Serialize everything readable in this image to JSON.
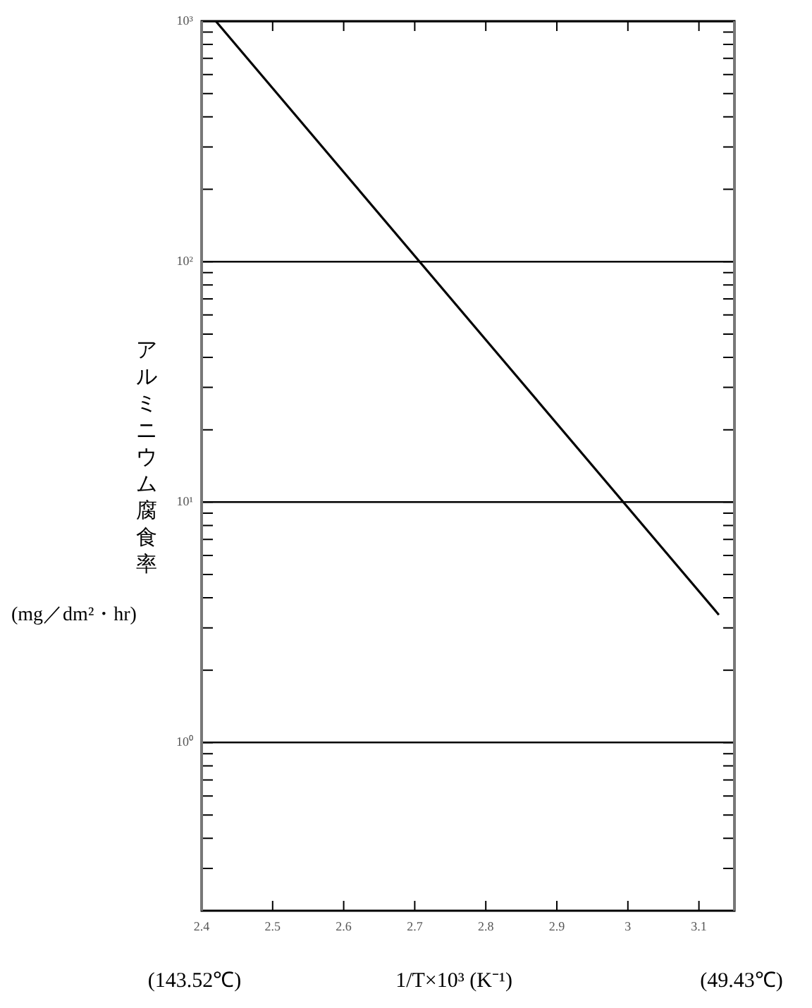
{
  "chart_data": {
    "type": "line",
    "ylabel": "アルミニウム腐食率(mg／dm²・hr)",
    "xlabel": "1/T×10³ (K⁻¹)",
    "x": [
      2.42,
      3.128
    ],
    "series": [
      {
        "color": "#000000",
        "values": [
          1000,
          3.4
        ]
      }
    ],
    "xlim": [
      2.4,
      3.15
    ],
    "xticks": [
      2.4,
      2.5,
      2.6,
      2.7,
      2.8,
      2.9,
      3,
      3.1
    ],
    "log": "y",
    "ylim": [
      0.2,
      1000
    ],
    "yticks": [
      {
        "value": 0.2,
        "label": null
      },
      {
        "value": 0.3,
        "label": null
      },
      {
        "value": 0.4,
        "label": null
      },
      {
        "value": 0.5,
        "label": null
      },
      {
        "value": 0.6,
        "label": null
      },
      {
        "value": 0.7,
        "label": null
      },
      {
        "value": 0.8,
        "label": null
      },
      {
        "value": 0.9,
        "label": null
      },
      {
        "value": 1,
        "label": "10⁰"
      },
      {
        "value": 2,
        "label": null
      },
      {
        "value": 3,
        "label": null
      },
      {
        "value": 4,
        "label": null
      },
      {
        "value": 5,
        "label": null
      },
      {
        "value": 6,
        "label": null
      },
      {
        "value": 7,
        "label": null
      },
      {
        "value": 8,
        "label": null
      },
      {
        "value": 9,
        "label": null
      },
      {
        "value": 10,
        "label": "10¹"
      },
      {
        "value": 20,
        "label": null
      },
      {
        "value": 30,
        "label": null
      },
      {
        "value": 40,
        "label": null
      },
      {
        "value": 50,
        "label": null
      },
      {
        "value": 60,
        "label": null
      },
      {
        "value": 70,
        "label": null
      },
      {
        "value": 80,
        "label": null
      },
      {
        "value": 90,
        "label": null
      },
      {
        "value": 100,
        "label": "10²"
      },
      {
        "value": 200,
        "label": null
      },
      {
        "value": 300,
        "label": null
      },
      {
        "value": 400,
        "label": null
      },
      {
        "value": 500,
        "label": null
      },
      {
        "value": 600,
        "label": null
      },
      {
        "value": 700,
        "label": null
      },
      {
        "value": 800,
        "label": null
      },
      {
        "value": 900,
        "label": null
      },
      {
        "value": 1000,
        "label": "10³"
      }
    ],
    "grid": "y",
    "marker": "none",
    "line_style": "solid",
    "legend": false,
    "annotations": [
      "(143.52℃)",
      "(49.43℃)"
    ]
  }
}
